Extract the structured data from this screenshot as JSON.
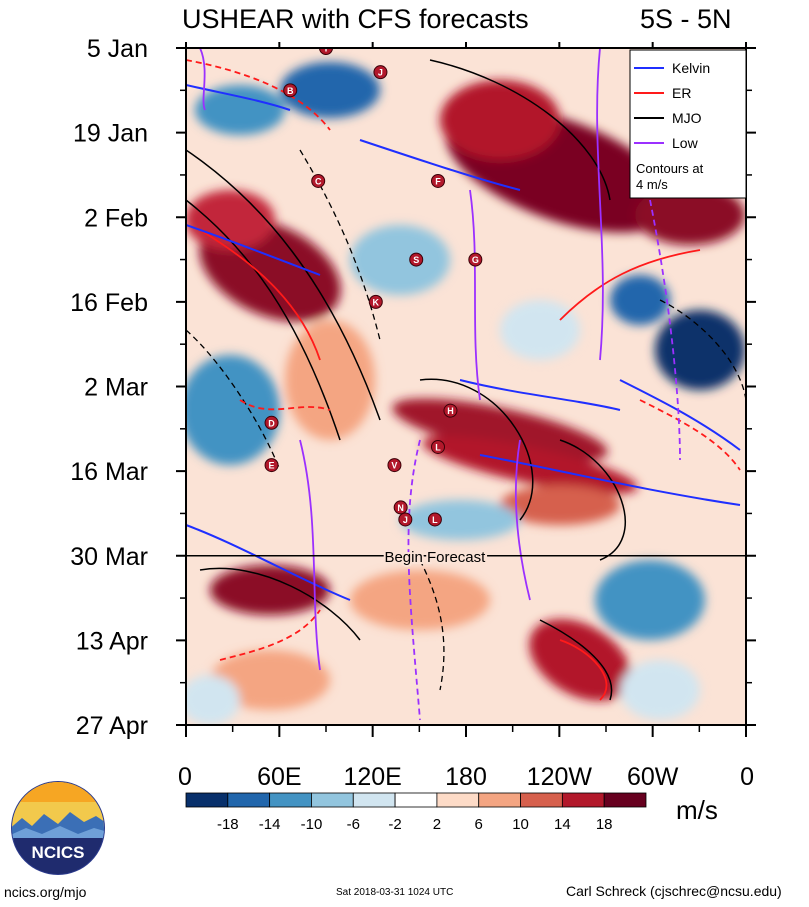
{
  "title": "USHEAR with CFS forecasts",
  "region": "5S - 5N",
  "chart_data": {
    "type": "heatmap",
    "title": "USHEAR with CFS forecasts",
    "subtitle": "5S - 5N",
    "x_tick_labels": [
      "0",
      "60E",
      "120E",
      "180",
      "120W",
      "60W",
      "0"
    ],
    "x_tick_lon": [
      0,
      60,
      120,
      180,
      240,
      300,
      360
    ],
    "xlim": [
      0,
      360
    ],
    "y_tick_labels": [
      "5 Jan",
      "19 Jan",
      "2 Feb",
      "16 Feb",
      "2 Mar",
      "16 Mar",
      "30 Mar",
      "13 Apr",
      "27 Apr"
    ],
    "y_tick_day": [
      0,
      14,
      28,
      42,
      56,
      70,
      84,
      98,
      112
    ],
    "ylim": [
      0,
      112
    ],
    "forecast_start_day": 84,
    "forecast_label": "Begin Forecast",
    "legend": {
      "position": "top-right",
      "entries": [
        {
          "name": "Kelvin",
          "color": "#1f2fff"
        },
        {
          "name": "ER",
          "color": "#ff1a1a"
        },
        {
          "name": "MJO",
          "color": "#000000"
        },
        {
          "name": "Low",
          "color": "#9b30ff"
        }
      ],
      "note": "Contours at 4 m/s"
    },
    "colorbar": {
      "units": "m/s",
      "tick_labels": [
        "-18",
        "-14",
        "-10",
        "-6",
        "-2",
        "2",
        "6",
        "10",
        "14",
        "18"
      ],
      "colors": [
        "#08306b",
        "#2166ac",
        "#4393c3",
        "#92c5de",
        "#d1e5f0",
        "#ffffff",
        "#fddbc7",
        "#f4a582",
        "#d6604d",
        "#b2182b",
        "#67001f"
      ]
    },
    "storms": [
      {
        "letter": "I",
        "lon": 90,
        "day": 0
      },
      {
        "letter": "B",
        "lon": 67,
        "day": 7
      },
      {
        "letter": "J",
        "lon": 125,
        "day": 4
      },
      {
        "letter": "C",
        "lon": 85,
        "day": 22
      },
      {
        "letter": "F",
        "lon": 162,
        "day": 22
      },
      {
        "letter": "S",
        "lon": 148,
        "day": 35
      },
      {
        "letter": "G",
        "lon": 186,
        "day": 35
      },
      {
        "letter": "K",
        "lon": 122,
        "day": 42
      },
      {
        "letter": "D",
        "lon": 55,
        "day": 62
      },
      {
        "letter": "H",
        "lon": 170,
        "day": 60
      },
      {
        "letter": "L",
        "lon": 162,
        "day": 66
      },
      {
        "letter": "E",
        "lon": 55,
        "day": 69
      },
      {
        "letter": "V",
        "lon": 134,
        "day": 69
      },
      {
        "letter": "N",
        "lon": 138,
        "day": 76
      },
      {
        "letter": "J",
        "lon": 141,
        "day": 78
      },
      {
        "letter": "L",
        "lon": 160,
        "day": 78
      }
    ]
  },
  "units": "m/s",
  "logo_text": "NCICS",
  "footer": {
    "url": "ncics.org/mjo",
    "timestamp": "Sat 2018-03-31 1024 UTC",
    "author": "Carl Schreck (cjschrec@ncsu.edu)"
  }
}
